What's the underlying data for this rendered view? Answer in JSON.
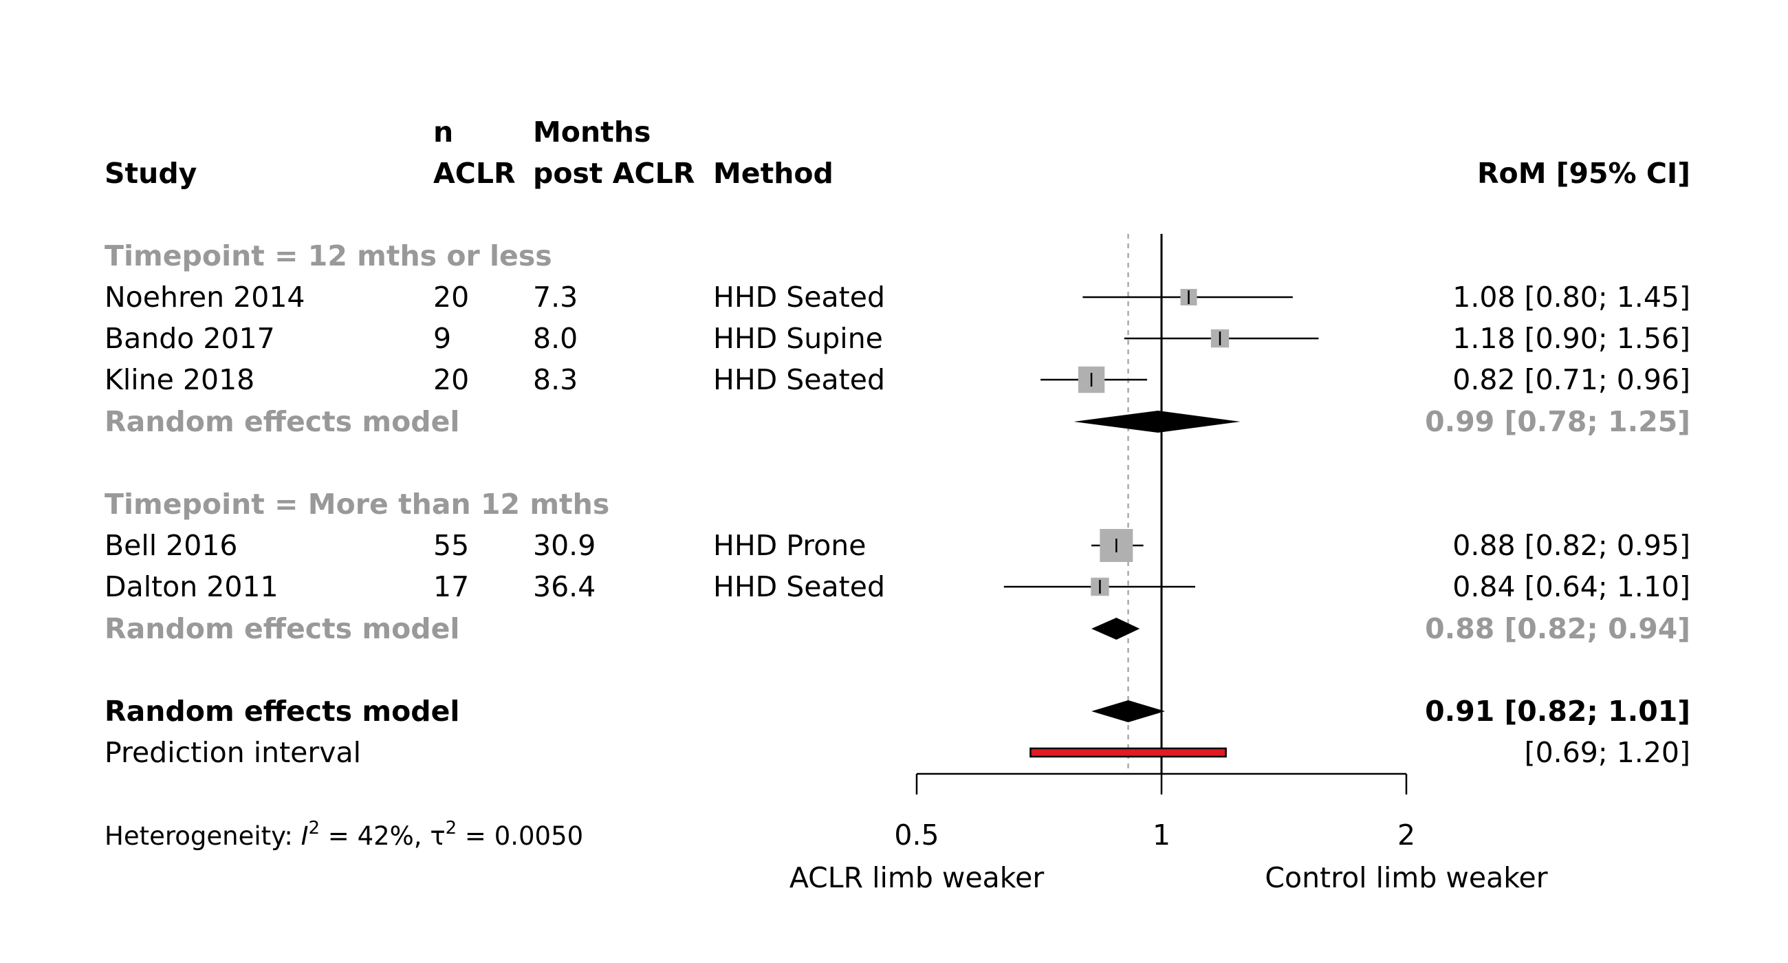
{
  "chart_data": {
    "type": "forest",
    "headers": {
      "study": "Study",
      "n_line1": "n",
      "n_line2": "ACLR",
      "months_line1": "Months",
      "months_line2": "post ACLR",
      "method": "Method",
      "estimate": "RoM [95% CI]"
    },
    "x_scale": "log",
    "x_ticks": [
      {
        "value": 0.5,
        "label": "0.5"
      },
      {
        "value": 1,
        "label": "1"
      },
      {
        "value": 2,
        "label": "2"
      }
    ],
    "x_range": [
      0.5,
      2
    ],
    "reference_line": 1,
    "overall_dashed_line": 0.91,
    "axis_labels": {
      "left": "ACLR limb weaker",
      "right": "Control limb weaker"
    },
    "subgroups": [
      {
        "label": "Timepoint = 12 mths or less",
        "studies": [
          {
            "study": "Noehren 2014",
            "n": "20",
            "months": "7.3",
            "method": "HHD Seated",
            "est": 1.08,
            "lo": 0.8,
            "hi": 1.45,
            "weight": 1.0,
            "ci_text": "1.08 [0.80; 1.45]"
          },
          {
            "study": "Bando 2017",
            "n": "9",
            "months": "8.0",
            "method": "HHD Supine",
            "est": 1.18,
            "lo": 0.9,
            "hi": 1.56,
            "weight": 1.1,
            "ci_text": "1.18 [0.90; 1.56]"
          },
          {
            "study": "Kline 2018",
            "n": "20",
            "months": "8.3",
            "method": "HHD Seated",
            "est": 0.82,
            "lo": 0.71,
            "hi": 0.96,
            "weight": 1.6,
            "ci_text": "0.82 [0.71; 0.96]"
          }
        ],
        "model": {
          "label": "Random effects model",
          "est": 0.99,
          "lo": 0.78,
          "hi": 1.25,
          "ci_text": "0.99 [0.78; 1.25]"
        }
      },
      {
        "label": "Timepoint = More than 12 mths",
        "studies": [
          {
            "study": "Bell 2016",
            "n": "55",
            "months": "30.9",
            "method": "HHD Prone",
            "est": 0.88,
            "lo": 0.82,
            "hi": 0.95,
            "weight": 2.0,
            "ci_text": "0.88 [0.82; 0.95]"
          },
          {
            "study": "Dalton 2011",
            "n": "17",
            "months": "36.4",
            "method": "HHD Seated",
            "est": 0.84,
            "lo": 0.64,
            "hi": 1.1,
            "weight": 1.1,
            "ci_text": "0.84 [0.64; 1.10]"
          }
        ],
        "model": {
          "label": "Random effects model",
          "est": 0.88,
          "lo": 0.82,
          "hi": 0.94,
          "ci_text": "0.88 [0.82; 0.94]"
        }
      }
    ],
    "overall": {
      "label": "Random effects model",
      "est": 0.91,
      "lo": 0.82,
      "hi": 1.01,
      "ci_text": "0.91 [0.82; 1.01]"
    },
    "prediction": {
      "label": "Prediction interval",
      "lo": 0.69,
      "hi": 1.2,
      "ci_text": "[0.69; 1.20]"
    },
    "heterogeneity": {
      "prefix": "Heterogeneity: ",
      "i2_symbol": "I",
      "i2_value": " = 42%, ",
      "tau2_symbol": "τ",
      "tau2_value": " = 0.0050",
      "sup": "2"
    },
    "colors": {
      "box": "#b0b0b0",
      "grey_text": "#999999",
      "prediction_fill": "#e01b24",
      "diamond": "#000000"
    }
  }
}
